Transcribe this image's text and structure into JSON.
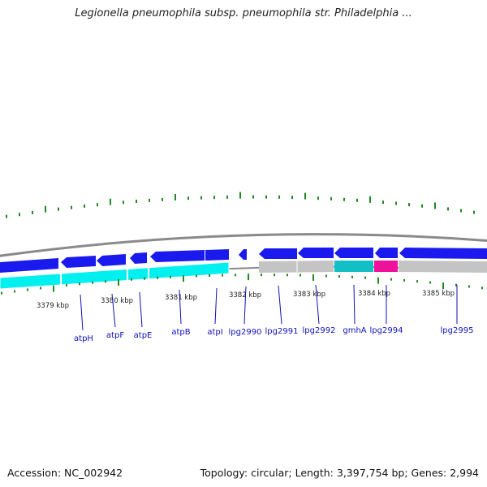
{
  "title": "Legionella pneumophila subsp. pneumophila str. Philadelphia ...",
  "accession": "Accession: NC_002942",
  "topology": "Topology: circular; Length: 3,397,754 bp; Genes: 2,994",
  "colors": {
    "backbone": "#8a8a8a",
    "forward_gene": "#1a1aee",
    "reverse_gene": "#00f0f0",
    "grey_gene": "#c4c4c4",
    "teal_gene": "#11bfc4",
    "magenta_gene": "#ee1199",
    "tick": "#228822",
    "label": "#1010bb"
  },
  "scale_labels": [
    "3379 kbp",
    "3380 kbp",
    "3381 kbp",
    "3382 kbp",
    "3383 kbp",
    "3384 kbp",
    "3385 kbp"
  ],
  "gene_labels": [
    "atpH",
    "atpF",
    "atpE",
    "atpB",
    "atpI",
    "lpg2990",
    "lpg2991",
    "lpg2992",
    "gmhA",
    "lpg2994",
    "lpg2995"
  ]
}
